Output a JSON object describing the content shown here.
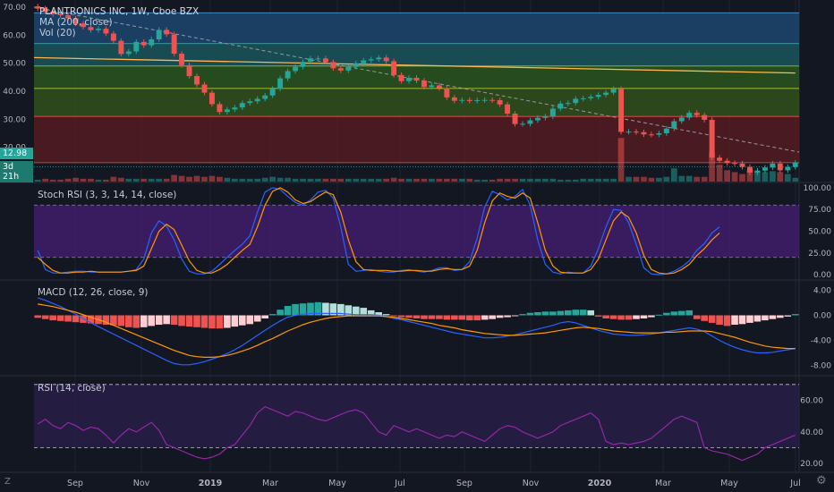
{
  "header": {
    "title": "PLANTRONICS INC, 1W, Cboe BZX",
    "ma_label": "MA (200, close)",
    "vol_label": "Vol (20)"
  },
  "price_badge": {
    "price": "12.98",
    "countdown": "3d 21h"
  },
  "corner": {
    "z_label": "Z",
    "gear": "gear-icon"
  },
  "colors": {
    "up": "#26a69a",
    "down": "#ef5350",
    "macd": "#2962ff",
    "signal": "#ff9800",
    "rsi": "#9c27b0",
    "ma": "#ffb74d"
  },
  "chart_data": [
    {
      "type": "candlestick",
      "title": "PLANTRONICS INC, 1W, Cboe BZX",
      "ylim": [
        10,
        70
      ],
      "yticks": [
        "70.00",
        "60.00",
        "50.00",
        "40.00",
        "30.00",
        "20.00"
      ],
      "xticks": [
        "Sep",
        "Nov",
        "2019",
        "Mar",
        "May",
        "Jul",
        "Sep",
        "Nov",
        "2020",
        "Mar",
        "May",
        "Jul"
      ],
      "closes": [
        69.5,
        68.4,
        67.5,
        67.1,
        66.0,
        64.2,
        62.9,
        61.8,
        62.3,
        60.6,
        58.0,
        53.3,
        54.2,
        57.6,
        56.4,
        58.5,
        61.9,
        60.3,
        53.4,
        49.3,
        45.4,
        42.4,
        39.5,
        35.4,
        32.6,
        33.5,
        34.2,
        35.8,
        36.4,
        37.3,
        38.5,
        40.9,
        44.6,
        47.2,
        48.7,
        50.5,
        51.7,
        51.7,
        50.4,
        48.2,
        47.4,
        48.7,
        50.0,
        51.0,
        51.4,
        52.0,
        50.7,
        45.8,
        43.6,
        44.8,
        43.8,
        41.5,
        42.1,
        41.1,
        37.8,
        36.6,
        36.9,
        36.5,
        36.8,
        36.9,
        36.8,
        35.3,
        32.0,
        28.3,
        28.4,
        29.6,
        30.5,
        31.0,
        33.8,
        35.6,
        35.8,
        37.3,
        37.5,
        38.0,
        38.7,
        39.5,
        40.8,
        25.5,
        25.6,
        25.4,
        24.6,
        24.5,
        25.0,
        26.7,
        29.3,
        30.6,
        32.3,
        31.5,
        29.8,
        16.3,
        15.2,
        14.4,
        14.2,
        13.0,
        11.0,
        11.7,
        12.8,
        14.2,
        11.8,
        13.0,
        14.5
      ],
      "ma200": {
        "name": "MA (200, close)",
        "from": 52,
        "to": 46.5
      },
      "trendline": {
        "from": 70,
        "to": 18.3
      },
      "price_label": "12.98"
    },
    {
      "type": "bar",
      "title": "Vol (20)",
      "values": [
        2,
        3,
        2,
        2,
        3,
        4,
        3,
        3,
        2,
        2,
        5,
        4,
        3,
        3,
        3,
        3,
        3,
        3,
        7,
        6,
        5,
        6,
        5,
        6,
        5,
        4,
        3,
        3,
        3,
        3,
        4,
        5,
        4,
        4,
        3,
        3,
        3,
        3,
        3,
        3,
        3,
        3,
        3,
        3,
        3,
        3,
        3,
        4,
        3,
        3,
        3,
        3,
        3,
        3,
        3,
        3,
        3,
        3,
        2,
        2,
        2,
        3,
        3,
        3,
        3,
        3,
        3,
        3,
        3,
        2,
        2,
        2,
        3,
        3,
        3,
        3,
        3,
        46,
        5,
        5,
        5,
        4,
        4,
        5,
        14,
        6,
        6,
        5,
        5,
        31,
        18,
        12,
        10,
        8,
        12,
        11,
        10,
        11,
        10,
        8,
        4
      ],
      "ylim": [
        0,
        50
      ]
    },
    {
      "type": "line",
      "title": "Stoch RSI (3, 3, 14, 14, close)",
      "ylim": [
        -5,
        105
      ],
      "yticks": [
        "100.00",
        "75.00",
        "50.00",
        "25.00",
        "0.00"
      ],
      "bands": [
        20,
        80
      ],
      "series": [
        {
          "values": [
            28,
            6,
            2,
            2,
            3,
            4,
            4,
            3,
            3,
            3,
            3,
            3,
            4,
            6,
            18,
            48,
            62,
            56,
            40,
            18,
            4,
            1,
            1,
            4,
            12,
            20,
            28,
            35,
            45,
            72,
            95,
            100,
            98,
            90,
            83,
            80,
            86,
            95,
            97,
            88,
            55,
            12,
            4,
            5,
            6,
            4,
            3,
            3,
            5,
            6,
            4,
            3,
            5,
            8,
            8,
            5,
            6,
            15,
            42,
            78,
            96,
            92,
            86,
            90,
            98,
            80,
            40,
            12,
            3,
            1,
            3,
            2,
            2,
            10,
            30,
            55,
            75,
            74,
            60,
            35,
            8,
            1,
            0,
            1,
            4,
            9,
            16,
            28,
            36,
            48,
            55
          ]
        },
        {
          "values": [
            20,
            12,
            5,
            2,
            2,
            3,
            3,
            4,
            3,
            3,
            3,
            3,
            4,
            5,
            10,
            30,
            50,
            58,
            52,
            34,
            16,
            5,
            2,
            2,
            6,
            12,
            20,
            28,
            35,
            55,
            80,
            96,
            100,
            95,
            86,
            82,
            84,
            90,
            95,
            92,
            72,
            40,
            15,
            6,
            5,
            5,
            5,
            4,
            4,
            5,
            5,
            4,
            4,
            6,
            7,
            6,
            6,
            10,
            28,
            60,
            85,
            94,
            90,
            88,
            94,
            88,
            60,
            28,
            10,
            3,
            2,
            2,
            2,
            6,
            18,
            40,
            62,
            72,
            66,
            48,
            22,
            6,
            2,
            1,
            2,
            6,
            12,
            22,
            30,
            40,
            48
          ]
        }
      ]
    },
    {
      "type": "histogram",
      "title": "MACD (12, 26, close, 9)",
      "ylim": [
        -9.5,
        5.5
      ],
      "yticks": [
        "4.00",
        "0.00",
        "-4.00",
        "-8.00"
      ],
      "histogram": [
        -0.4,
        -0.6,
        -0.8,
        -0.9,
        -1.0,
        -1.1,
        -1.2,
        -1.3,
        -1.4,
        -1.5,
        -1.6,
        -1.7,
        -1.9,
        -2.0,
        -1.9,
        -1.7,
        -1.5,
        -1.4,
        -1.5,
        -1.7,
        -1.8,
        -1.9,
        -2.0,
        -2.1,
        -2.1,
        -2.0,
        -1.8,
        -1.6,
        -1.4,
        -1.0,
        -0.5,
        0.2,
        0.9,
        1.5,
        1.8,
        1.9,
        2.0,
        2.1,
        2.0,
        1.9,
        1.8,
        1.6,
        1.4,
        1.2,
        0.8,
        0.5,
        0.2,
        -0.1,
        -0.3,
        -0.4,
        -0.5,
        -0.6,
        -0.6,
        -0.6,
        -0.7,
        -0.7,
        -0.7,
        -0.8,
        -0.8,
        -0.7,
        -0.6,
        -0.4,
        -0.3,
        -0.1,
        0.2,
        0.4,
        0.5,
        0.6,
        0.6,
        0.7,
        0.8,
        0.9,
        0.9,
        0.8,
        -0.2,
        -0.5,
        -0.6,
        -0.7,
        -0.7,
        -0.6,
        -0.5,
        -0.3,
        0.1,
        0.4,
        0.6,
        0.7,
        0.8,
        -0.6,
        -0.9,
        -1.2,
        -1.5,
        -1.7,
        -1.5,
        -1.4,
        -1.2,
        -1.0,
        -0.8,
        -0.6,
        -0.4,
        -0.2,
        0.2
      ],
      "series": [
        {
          "name": "MACD",
          "values": [
            2.8,
            2.4,
            1.9,
            1.4,
            0.8,
            0.2,
            -0.5,
            -1.2,
            -1.8,
            -2.4,
            -3.0,
            -3.6,
            -4.2,
            -4.8,
            -5.4,
            -6.0,
            -6.6,
            -7.2,
            -7.7,
            -7.9,
            -7.9,
            -7.7,
            -7.4,
            -7.0,
            -6.6,
            -6.1,
            -5.5,
            -4.8,
            -4.0,
            -3.2,
            -2.4,
            -1.6,
            -0.9,
            -0.3,
            0.0,
            0.2,
            0.3,
            0.3,
            0.3,
            0.3,
            0.3,
            0.2,
            0.1,
            0.1,
            0.1,
            0.0,
            -0.2,
            -0.5,
            -0.7,
            -1.0,
            -1.3,
            -1.6,
            -1.9,
            -2.2,
            -2.5,
            -2.8,
            -3.0,
            -3.2,
            -3.4,
            -3.6,
            -3.6,
            -3.5,
            -3.3,
            -3.1,
            -2.8,
            -2.5,
            -2.2,
            -1.9,
            -1.6,
            -1.2,
            -1.0,
            -1.2,
            -1.6,
            -2.0,
            -2.4,
            -2.7,
            -3.0,
            -3.1,
            -3.2,
            -3.2,
            -3.1,
            -3.0,
            -2.8,
            -2.6,
            -2.4,
            -2.2,
            -2.0,
            -2.2,
            -2.6,
            -3.3,
            -4.0,
            -4.6,
            -5.1,
            -5.5,
            -5.8,
            -6.0,
            -6.0,
            -5.9,
            -5.7,
            -5.5,
            -5.3
          ]
        },
        {
          "name": "Signal",
          "values": [
            1.8,
            1.6,
            1.4,
            1.1,
            0.8,
            0.5,
            0.1,
            -0.3,
            -0.7,
            -1.1,
            -1.6,
            -2.1,
            -2.6,
            -3.1,
            -3.6,
            -4.1,
            -4.6,
            -5.1,
            -5.6,
            -6.0,
            -6.4,
            -6.6,
            -6.7,
            -6.7,
            -6.6,
            -6.4,
            -6.1,
            -5.7,
            -5.3,
            -4.8,
            -4.2,
            -3.7,
            -3.1,
            -2.5,
            -2.0,
            -1.5,
            -1.1,
            -0.8,
            -0.5,
            -0.3,
            -0.2,
            -0.1,
            -0.1,
            -0.1,
            -0.1,
            -0.1,
            -0.2,
            -0.3,
            -0.5,
            -0.7,
            -0.9,
            -1.1,
            -1.3,
            -1.6,
            -1.8,
            -2.0,
            -2.3,
            -2.5,
            -2.7,
            -2.9,
            -3.0,
            -3.1,
            -3.2,
            -3.2,
            -3.1,
            -3.0,
            -2.9,
            -2.8,
            -2.6,
            -2.4,
            -2.2,
            -2.0,
            -1.9,
            -2.0,
            -2.1,
            -2.3,
            -2.5,
            -2.6,
            -2.7,
            -2.8,
            -2.8,
            -2.8,
            -2.8,
            -2.7,
            -2.7,
            -2.6,
            -2.5,
            -2.5,
            -2.5,
            -2.6,
            -2.9,
            -3.2,
            -3.5,
            -3.9,
            -4.3,
            -4.6,
            -4.9,
            -5.1,
            -5.2,
            -5.3,
            -5.3
          ]
        }
      ]
    },
    {
      "type": "line",
      "title": "RSI (14, close)",
      "ylim": [
        15,
        75
      ],
      "yticks": [
        "60.00",
        "40.00",
        "20.00"
      ],
      "bands": [
        30,
        70
      ],
      "series": [
        {
          "values": [
            45,
            48,
            44,
            42,
            46,
            44,
            41,
            43,
            42,
            38,
            33,
            38,
            42,
            40,
            43,
            46,
            41,
            32,
            30,
            28,
            26,
            24,
            23,
            24,
            26,
            30,
            32,
            38,
            44,
            52,
            56,
            54,
            52,
            50,
            53,
            52,
            50,
            48,
            47,
            49,
            51,
            53,
            54,
            52,
            46,
            40,
            38,
            44,
            42,
            40,
            42,
            40,
            38,
            36,
            38,
            37,
            40,
            38,
            36,
            34,
            38,
            42,
            44,
            43,
            40,
            38,
            36,
            38,
            40,
            44,
            46,
            48,
            50,
            52,
            48,
            34,
            32,
            33,
            32,
            33,
            34,
            36,
            40,
            44,
            48,
            50,
            48,
            46,
            30,
            28,
            27,
            26,
            24,
            22,
            24,
            26,
            30,
            32,
            34,
            36,
            38
          ]
        }
      ]
    }
  ],
  "panels": {
    "stoch_label": "Stoch RSI (3, 3, 14, 14, close)",
    "macd_label": "MACD (12, 26, close, 9)",
    "rsi_label": "RSI (14, close)"
  }
}
